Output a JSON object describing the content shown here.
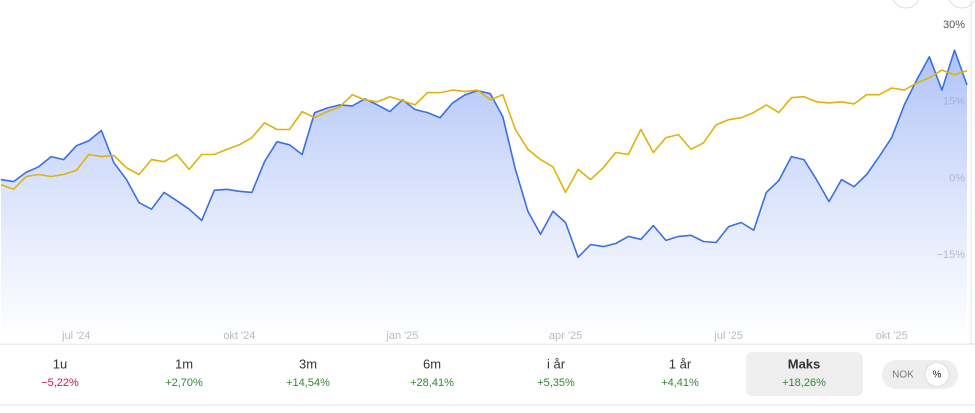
{
  "chart_data": {
    "type": "line",
    "categories": [
      null,
      null,
      null,
      null,
      null,
      null,
      "jul '24",
      null,
      null,
      null,
      null,
      null,
      null,
      null,
      null,
      null,
      null,
      null,
      null,
      "okt '24",
      null,
      null,
      null,
      null,
      null,
      null,
      null,
      null,
      null,
      null,
      null,
      null,
      "jan '25",
      null,
      null,
      null,
      null,
      null,
      null,
      null,
      null,
      null,
      null,
      null,
      null,
      "apr '25",
      null,
      null,
      null,
      null,
      null,
      null,
      null,
      null,
      null,
      null,
      null,
      null,
      "jul '25",
      null,
      null,
      null,
      null,
      null,
      null,
      null,
      null,
      null,
      null,
      null,
      null,
      "okt '25",
      null,
      null,
      null,
      null,
      null,
      null
    ],
    "series": [
      {
        "color": "#3b6fe6",
        "area": true,
        "values": [
          -0.2,
          -0.6,
          1.2,
          2.3,
          4.3,
          3.7,
          6.4,
          7.4,
          9.4,
          3.1,
          -0.2,
          -4.7,
          -6.0,
          -2.7,
          -4.3,
          -6.0,
          -8.2,
          -2.3,
          -2.1,
          -2.5,
          -2.7,
          3.3,
          7.2,
          6.6,
          4.7,
          12.9,
          13.8,
          14.4,
          14.2,
          15.6,
          14.4,
          13.1,
          15.4,
          13.5,
          12.9,
          11.9,
          14.8,
          16.4,
          17.2,
          16.6,
          12.1,
          1.8,
          -6.4,
          -10.9,
          -6.4,
          -8.6,
          -15.4,
          -12.9,
          -13.3,
          -12.7,
          -11.3,
          -11.9,
          -9.2,
          -12.1,
          -11.3,
          -11.1,
          -12.3,
          -12.5,
          -9.4,
          -8.6,
          -10.1,
          -2.7,
          -0.4,
          4.3,
          3.7,
          -0.2,
          -4.5,
          -0.2,
          -1.6,
          0.8,
          4.3,
          8.0,
          14.4,
          19.3,
          23.8,
          17.3,
          25.1,
          18.3
        ]
      },
      {
        "color": "#dfb30a",
        "area": false,
        "values": [
          -1.2,
          -2.1,
          0.4,
          0.8,
          0.4,
          0.8,
          1.6,
          4.7,
          4.3,
          4.5,
          2.1,
          0.8,
          3.7,
          3.3,
          4.7,
          1.8,
          4.7,
          4.7,
          5.7,
          6.6,
          8.0,
          10.9,
          9.6,
          9.6,
          13.1,
          11.9,
          13.1,
          14.0,
          16.4,
          15.4,
          15.0,
          16.0,
          15.2,
          14.4,
          16.8,
          16.8,
          17.3,
          17.0,
          17.3,
          15.4,
          16.4,
          9.6,
          5.7,
          3.7,
          2.3,
          -2.7,
          1.8,
          -0.2,
          2.1,
          5.1,
          4.7,
          9.6,
          5.1,
          8.0,
          8.6,
          5.7,
          7.0,
          10.5,
          11.5,
          11.9,
          12.9,
          14.4,
          12.9,
          15.8,
          16.0,
          15.0,
          14.8,
          15.0,
          14.6,
          16.4,
          16.4,
          17.7,
          17.3,
          18.7,
          19.7,
          21.2,
          20.3,
          21.1
        ]
      }
    ],
    "ylim": [
      -30,
      31
    ],
    "yticks": [
      {
        "value": 30,
        "label": "30%"
      },
      {
        "value": 15,
        "label": "15%"
      },
      {
        "value": 0,
        "label": "0%"
      },
      {
        "value": -15,
        "label": "−15%"
      }
    ],
    "y_axis_side": "right"
  },
  "periods": [
    {
      "label": "1u",
      "change": "−5,22%",
      "color": "#c2185b"
    },
    {
      "label": "1m",
      "change": "+2,70%",
      "color": "#2e8b2e"
    },
    {
      "label": "3m",
      "change": "+14,54%",
      "color": "#2e8b2e"
    },
    {
      "label": "6m",
      "change": "+28,41%",
      "color": "#2e8b2e"
    },
    {
      "label": "i år",
      "change": "+5,35%",
      "color": "#2e8b2e"
    },
    {
      "label": "1 år",
      "change": "+4,41%",
      "color": "#2e8b2e"
    },
    {
      "label": "Maks",
      "change": "+18,26%",
      "color": "#2e8b2e",
      "selected": true
    }
  ],
  "unit_toggle": [
    {
      "label": "NOK"
    },
    {
      "label": "%",
      "selected": true
    }
  ]
}
